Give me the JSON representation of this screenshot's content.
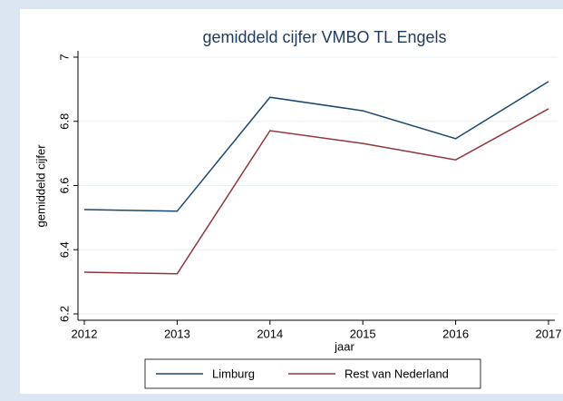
{
  "chart_data": {
    "type": "line",
    "title": "gemiddeld cijfer VMBO TL Engels",
    "x_label": "jaar",
    "y_label": "gemiddeld cijfer",
    "x": [
      2012,
      2013,
      2014,
      2015,
      2016,
      2017
    ],
    "series": [
      {
        "name": "Limburg",
        "color": "#1a476f",
        "values": [
          6.525,
          6.52,
          6.875,
          6.833,
          6.746,
          6.924
        ]
      },
      {
        "name": "Rest van Nederland",
        "color": "#90353b",
        "values": [
          6.33,
          6.325,
          6.771,
          6.731,
          6.68,
          6.839
        ]
      }
    ],
    "xlim": [
      2012,
      2017
    ],
    "xticks": [
      2012,
      2013,
      2014,
      2015,
      2016,
      2017
    ],
    "ylim": [
      6.2,
      7
    ],
    "yticks": [
      6.2,
      6.4,
      6.6,
      6.8,
      7
    ],
    "grid": true,
    "legend": "bottom"
  }
}
